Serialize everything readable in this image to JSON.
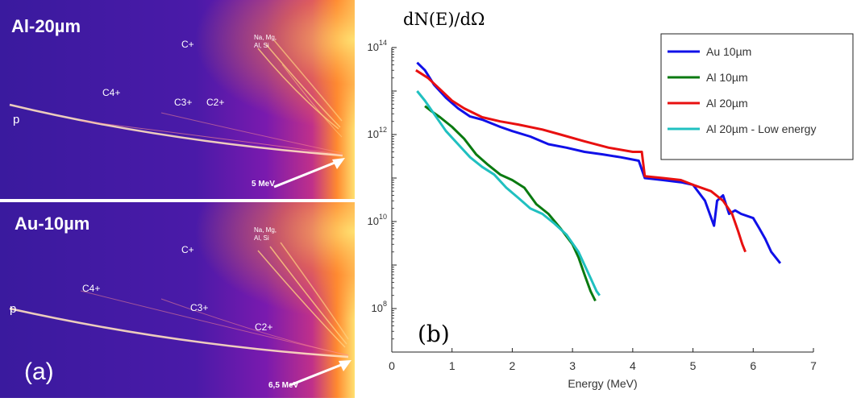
{
  "panel_a": {
    "tag": "(a)",
    "top": {
      "target": "Al-20µm",
      "ions": {
        "c_plus": "C+",
        "c4": "C4+",
        "c3": "C3+",
        "c2": "C2+",
        "p": "p",
        "heavy": "Na, Mg,\nAl, Si"
      },
      "energy_marker": "5 MeV"
    },
    "bottom": {
      "target": "Au-10µm",
      "ions": {
        "c_plus": "C+",
        "c4": "C4+",
        "c3": "C3+",
        "c2": "C2+",
        "p": "p",
        "heavy": "Na, Mg,\nAl, Si"
      },
      "energy_marker": "6,5 MeV"
    }
  },
  "colors": {
    "image_dark": "#3a1a9e",
    "image_mid": "#9a1fb0",
    "image_hot": "#ff9a20",
    "image_edge": "#ffe070"
  },
  "chart_data": {
    "type": "line",
    "panel_tag": "(b)",
    "ylabel": "dN(E)/dΩ",
    "xlabel": "Energy (MeV)",
    "xlim": [
      0,
      7
    ],
    "ylim": [
      10000000.0,
      100000000000000.0
    ],
    "yscale": "log",
    "xticks": [
      "0",
      "1",
      "2",
      "3",
      "4",
      "5",
      "6",
      "7"
    ],
    "yticks": [
      {
        "value": 100000000.0,
        "base": "10",
        "exp": "8"
      },
      {
        "value": 10000000000.0,
        "base": "10",
        "exp": "10"
      },
      {
        "value": 1000000000000.0,
        "base": "10",
        "exp": "12"
      },
      {
        "value": 100000000000000.0,
        "base": "10",
        "exp": "14"
      }
    ],
    "grid": false,
    "legend_position": "top-right",
    "series": [
      {
        "name": "Au 10µm",
        "color": "#1010e8",
        "x": [
          0.42,
          0.55,
          0.7,
          0.9,
          1.1,
          1.3,
          1.5,
          1.8,
          2.0,
          2.3,
          2.6,
          2.9,
          3.2,
          3.5,
          3.8,
          4.1,
          4.2,
          4.5,
          4.8,
          5.0,
          5.2,
          5.35,
          5.4,
          5.5,
          5.6,
          5.7,
          5.8,
          6.0,
          6.1,
          6.2,
          6.3,
          6.45
        ],
        "y": [
          45000000000000.0,
          30000000000000.0,
          14000000000000.0,
          7000000000000.0,
          4000000000000.0,
          2600000000000.0,
          2200000000000.0,
          1500000000000.0,
          1200000000000.0,
          900000000000.0,
          600000000000.0,
          500000000000.0,
          400000000000.0,
          350000000000.0,
          300000000000.0,
          250000000000.0,
          100000000000.0,
          90000000000.0,
          80000000000.0,
          70000000000.0,
          30000000000.0,
          8000000000.0,
          30000000000.0,
          40000000000.0,
          15000000000.0,
          18000000000.0,
          15000000000.0,
          12000000000.0,
          7000000000.0,
          4000000000.0,
          2000000000.0,
          1100000000.0
        ]
      },
      {
        "name": "Al 10µm",
        "color": "#0a7a10",
        "x": [
          0.55,
          0.65,
          0.8,
          1.0,
          1.2,
          1.4,
          1.6,
          1.8,
          2.0,
          2.2,
          2.4,
          2.6,
          2.8,
          3.0,
          3.1,
          3.2,
          3.3,
          3.38
        ],
        "y": [
          4500000000000.0,
          3500000000000.0,
          2500000000000.0,
          1500000000000.0,
          800000000000.0,
          350000000000.0,
          200000000000.0,
          120000000000.0,
          90000000000.0,
          60000000000.0,
          25000000000.0,
          15000000000.0,
          7000000000.0,
          3000000000.0,
          1500000000.0,
          600000000.0,
          250000000.0,
          150000000.0
        ]
      },
      {
        "name": "Al 20µm",
        "color": "#e81010",
        "x": [
          0.4,
          0.6,
          0.8,
          1.0,
          1.2,
          1.5,
          1.8,
          2.1,
          2.5,
          2.8,
          3.2,
          3.6,
          4.0,
          4.15,
          4.2,
          4.5,
          4.8,
          5.0,
          5.3,
          5.5,
          5.65,
          5.75,
          5.82,
          5.87
        ],
        "y": [
          30000000000000.0,
          20000000000000.0,
          11000000000000.0,
          6000000000000.0,
          4000000000000.0,
          2500000000000.0,
          2000000000000.0,
          1700000000000.0,
          1300000000000.0,
          1000000000000.0,
          700000000000.0,
          500000000000.0,
          400000000000.0,
          400000000000.0,
          110000000000.0,
          100000000000.0,
          90000000000.0,
          70000000000.0,
          50000000000.0,
          30000000000.0,
          15000000000.0,
          6000000000.0,
          3000000000.0,
          2000000000.0
        ]
      },
      {
        "name": "Al 20µm - Low energy",
        "color": "#20c0c0",
        "x": [
          0.42,
          0.55,
          0.7,
          0.9,
          1.1,
          1.3,
          1.5,
          1.7,
          1.9,
          2.1,
          2.3,
          2.5,
          2.7,
          2.9,
          3.1,
          3.2,
          3.3,
          3.4,
          3.45
        ],
        "y": [
          10000000000000.0,
          6000000000000.0,
          3000000000000.0,
          1200000000000.0,
          600000000000.0,
          300000000000.0,
          180000000000.0,
          120000000000.0,
          60000000000.0,
          35000000000.0,
          20000000000.0,
          15000000000.0,
          9000000000.0,
          5000000000.0,
          2000000000.0,
          1000000000.0,
          500000000.0,
          250000000.0,
          200000000.0
        ]
      }
    ]
  }
}
